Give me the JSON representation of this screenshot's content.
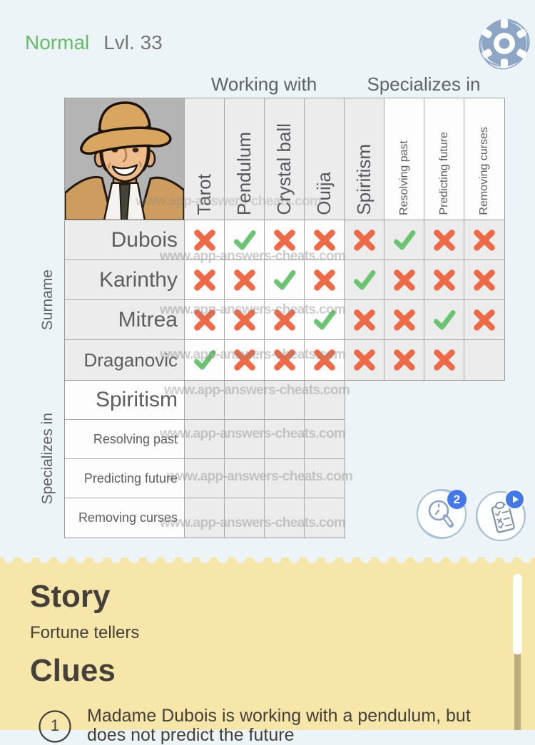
{
  "header": {
    "difficulty": "Normal",
    "level": "Lvl. 33"
  },
  "icons": {
    "settings": "gear-icon",
    "hint": "magnifier-icon",
    "answers": "clipboard-checklist-icon",
    "answers_badge": "play-icon",
    "portrait": "fortune-teller-man-portrait"
  },
  "grid": {
    "group_headers": [
      "Working with",
      "Specializes in"
    ],
    "row_groups": [
      "Surname",
      "Specializes in"
    ],
    "columns": [
      {
        "label": "Tarot",
        "big": true,
        "shaded": true
      },
      {
        "label": "Pendulum",
        "big": true,
        "shaded": true
      },
      {
        "label": "Crystal ball",
        "big": true,
        "shaded": true
      },
      {
        "label": "Ouija",
        "big": true,
        "shaded": true
      },
      {
        "label": "Spiritism",
        "big": true,
        "shaded": true
      },
      {
        "label": "Resolving past",
        "big": false,
        "shaded": false
      },
      {
        "label": "Predicting future",
        "big": false,
        "shaded": false
      },
      {
        "label": "Removing curses",
        "big": false,
        "shaded": false
      }
    ],
    "rows": [
      {
        "label": "Dubois",
        "marks": [
          "x",
          "v",
          "x",
          "x",
          "x",
          "v",
          "x",
          "x"
        ]
      },
      {
        "label": "Karinthy",
        "marks": [
          "x",
          "x",
          "v",
          "x",
          "v",
          "x",
          "x",
          "x"
        ]
      },
      {
        "label": "Mitrea",
        "marks": [
          "x",
          "x",
          "x",
          "v",
          "x",
          "x",
          "v",
          "x"
        ]
      },
      {
        "label": "Draganovic",
        "marks": [
          "v",
          "x",
          "x",
          "x",
          "x",
          "x",
          "x",
          ""
        ]
      }
    ],
    "bottom_rows": [
      {
        "label": "Spiritism",
        "big": true
      },
      {
        "label": "Resolving past",
        "big": false
      },
      {
        "label": "Predicting future",
        "big": false
      },
      {
        "label": "Removing curses",
        "big": false
      }
    ]
  },
  "watermark": {
    "text": "www.app-answers-cheats.com"
  },
  "buttons": {
    "hint_badge": "2"
  },
  "story": {
    "heading": "Story",
    "text": "Fortune tellers"
  },
  "clues": {
    "heading": "Clues",
    "items": [
      {
        "number": "1",
        "lines": [
          "Madame Dubois is working with a pendulum, but",
          "does not predict the future"
        ]
      }
    ]
  },
  "colors": {
    "accent_green": "#66bb6a",
    "cross_orange": "#ec6a48",
    "check_green": "#6cc473",
    "badge_blue": "#4478e8",
    "card_yellow": "#f7e6a9",
    "icon_bluegray": "#8da6c5"
  }
}
